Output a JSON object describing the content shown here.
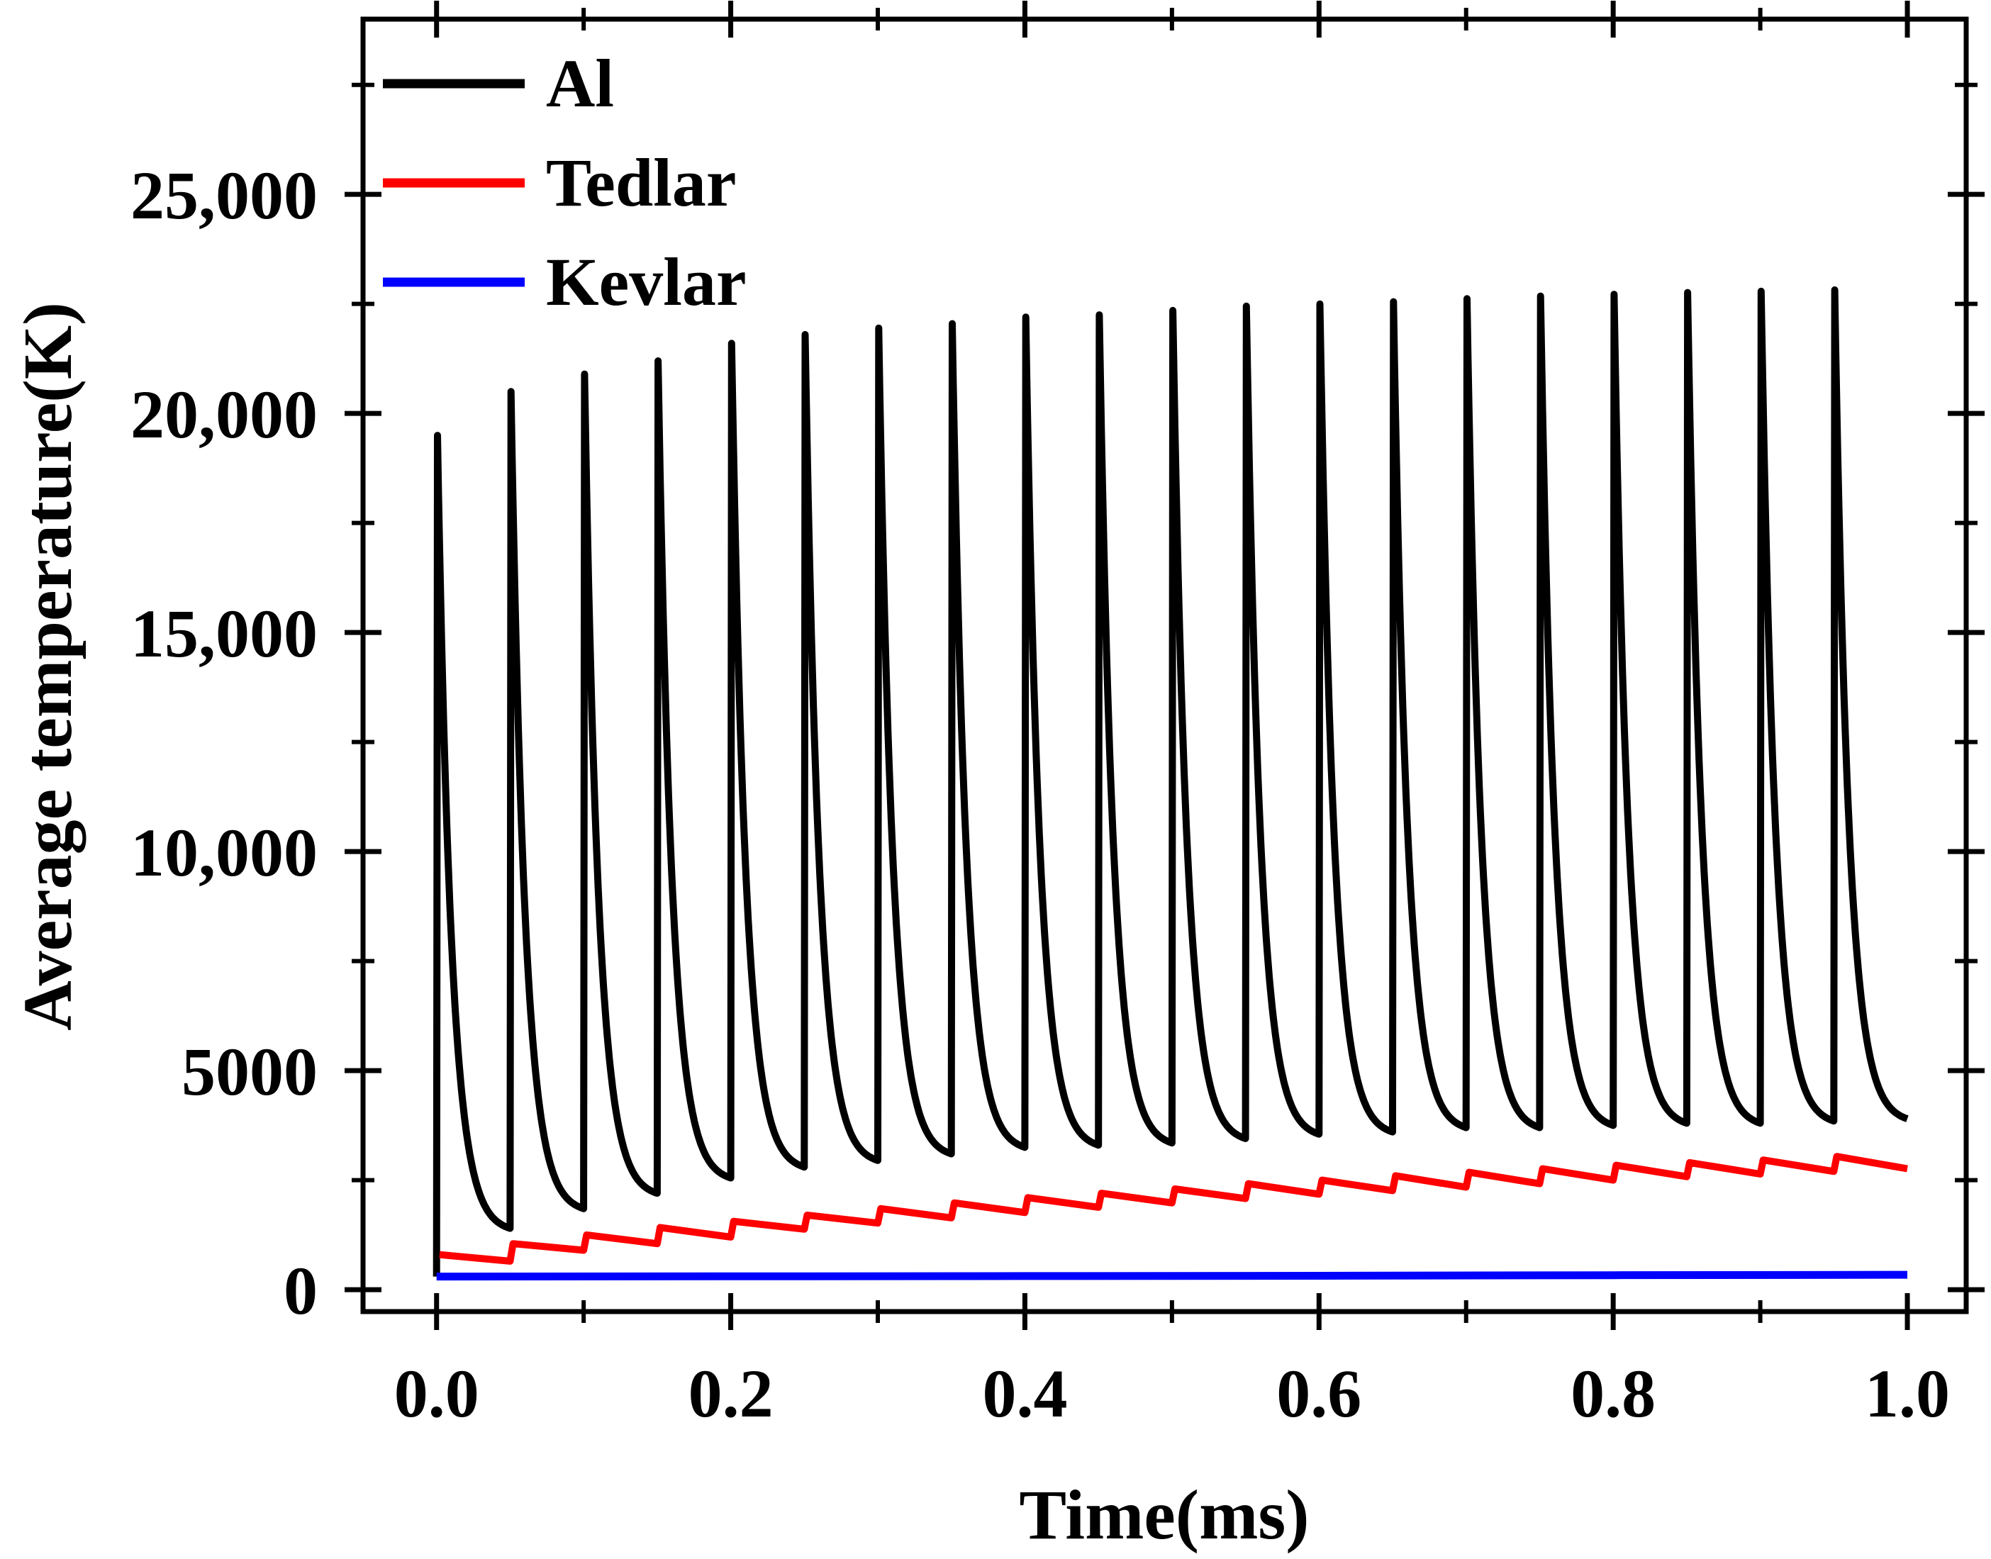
{
  "chart_data": {
    "type": "line",
    "title": "",
    "xlabel": "Time(ms)",
    "ylabel": "Average temperature(K)",
    "xlim": [
      -0.05,
      1.04
    ],
    "ylim": [
      -500,
      29000
    ],
    "x_ticks": [
      0.0,
      0.2,
      0.4,
      0.6,
      0.8,
      1.0
    ],
    "x_tick_labels": [
      "0.0",
      "0.2",
      "0.4",
      "0.6",
      "0.8",
      "1.0"
    ],
    "x_minor_ticks": [
      0.1,
      0.3,
      0.5,
      0.7,
      0.9
    ],
    "y_ticks": [
      0,
      5000,
      10000,
      15000,
      20000,
      25000
    ],
    "y_tick_labels": [
      "0",
      "5000",
      "10,000",
      "15,000",
      "20,000",
      "25,000"
    ],
    "y_minor_ticks": [
      2500,
      7500,
      12500,
      17500,
      22500,
      27500
    ],
    "grid": false,
    "legend_position": "top-left",
    "series": [
      {
        "name": "Al",
        "color": "#000000",
        "pulse_period": 0.05,
        "pulse_times": [
          0.0,
          0.05,
          0.1,
          0.15,
          0.2,
          0.25,
          0.3,
          0.35,
          0.4,
          0.45,
          0.5,
          0.55,
          0.6,
          0.65,
          0.7,
          0.75,
          0.8,
          0.85,
          0.9,
          0.95
        ],
        "start_value": 300,
        "peaks": [
          19500,
          20500,
          20900,
          21200,
          21600,
          21800,
          21950,
          22050,
          22200,
          22250,
          22350,
          22450,
          22500,
          22550,
          22620,
          22680,
          22720,
          22760,
          22790,
          22820
        ],
        "troughs": [
          1400,
          1850,
          2200,
          2550,
          2800,
          2950,
          3100,
          3250,
          3300,
          3350,
          3450,
          3550,
          3600,
          3700,
          3700,
          3750,
          3800,
          3800,
          3850,
          3900
        ]
      },
      {
        "name": "Tedlar",
        "color": "#ff0000",
        "pulse_times": [
          0.0,
          0.05,
          0.1,
          0.15,
          0.2,
          0.25,
          0.3,
          0.35,
          0.4,
          0.45,
          0.5,
          0.55,
          0.6,
          0.65,
          0.7,
          0.75,
          0.8,
          0.85,
          0.9,
          0.95
        ],
        "peaks": [
          800,
          1050,
          1250,
          1420,
          1560,
          1700,
          1850,
          1980,
          2100,
          2200,
          2300,
          2420,
          2500,
          2600,
          2680,
          2760,
          2840,
          2900,
          2960,
          3040
        ],
        "troughs": [
          650,
          900,
          1050,
          1200,
          1380,
          1520,
          1640,
          1760,
          1880,
          1980,
          2080,
          2180,
          2260,
          2340,
          2420,
          2500,
          2580,
          2640,
          2700,
          2760
        ]
      },
      {
        "name": "Kevlar",
        "color": "#0000ff",
        "x": [
          0.0,
          0.2,
          0.4,
          0.6,
          0.8,
          1.0
        ],
        "values": [
          300,
          305,
          310,
          318,
          330,
          340
        ]
      }
    ]
  }
}
